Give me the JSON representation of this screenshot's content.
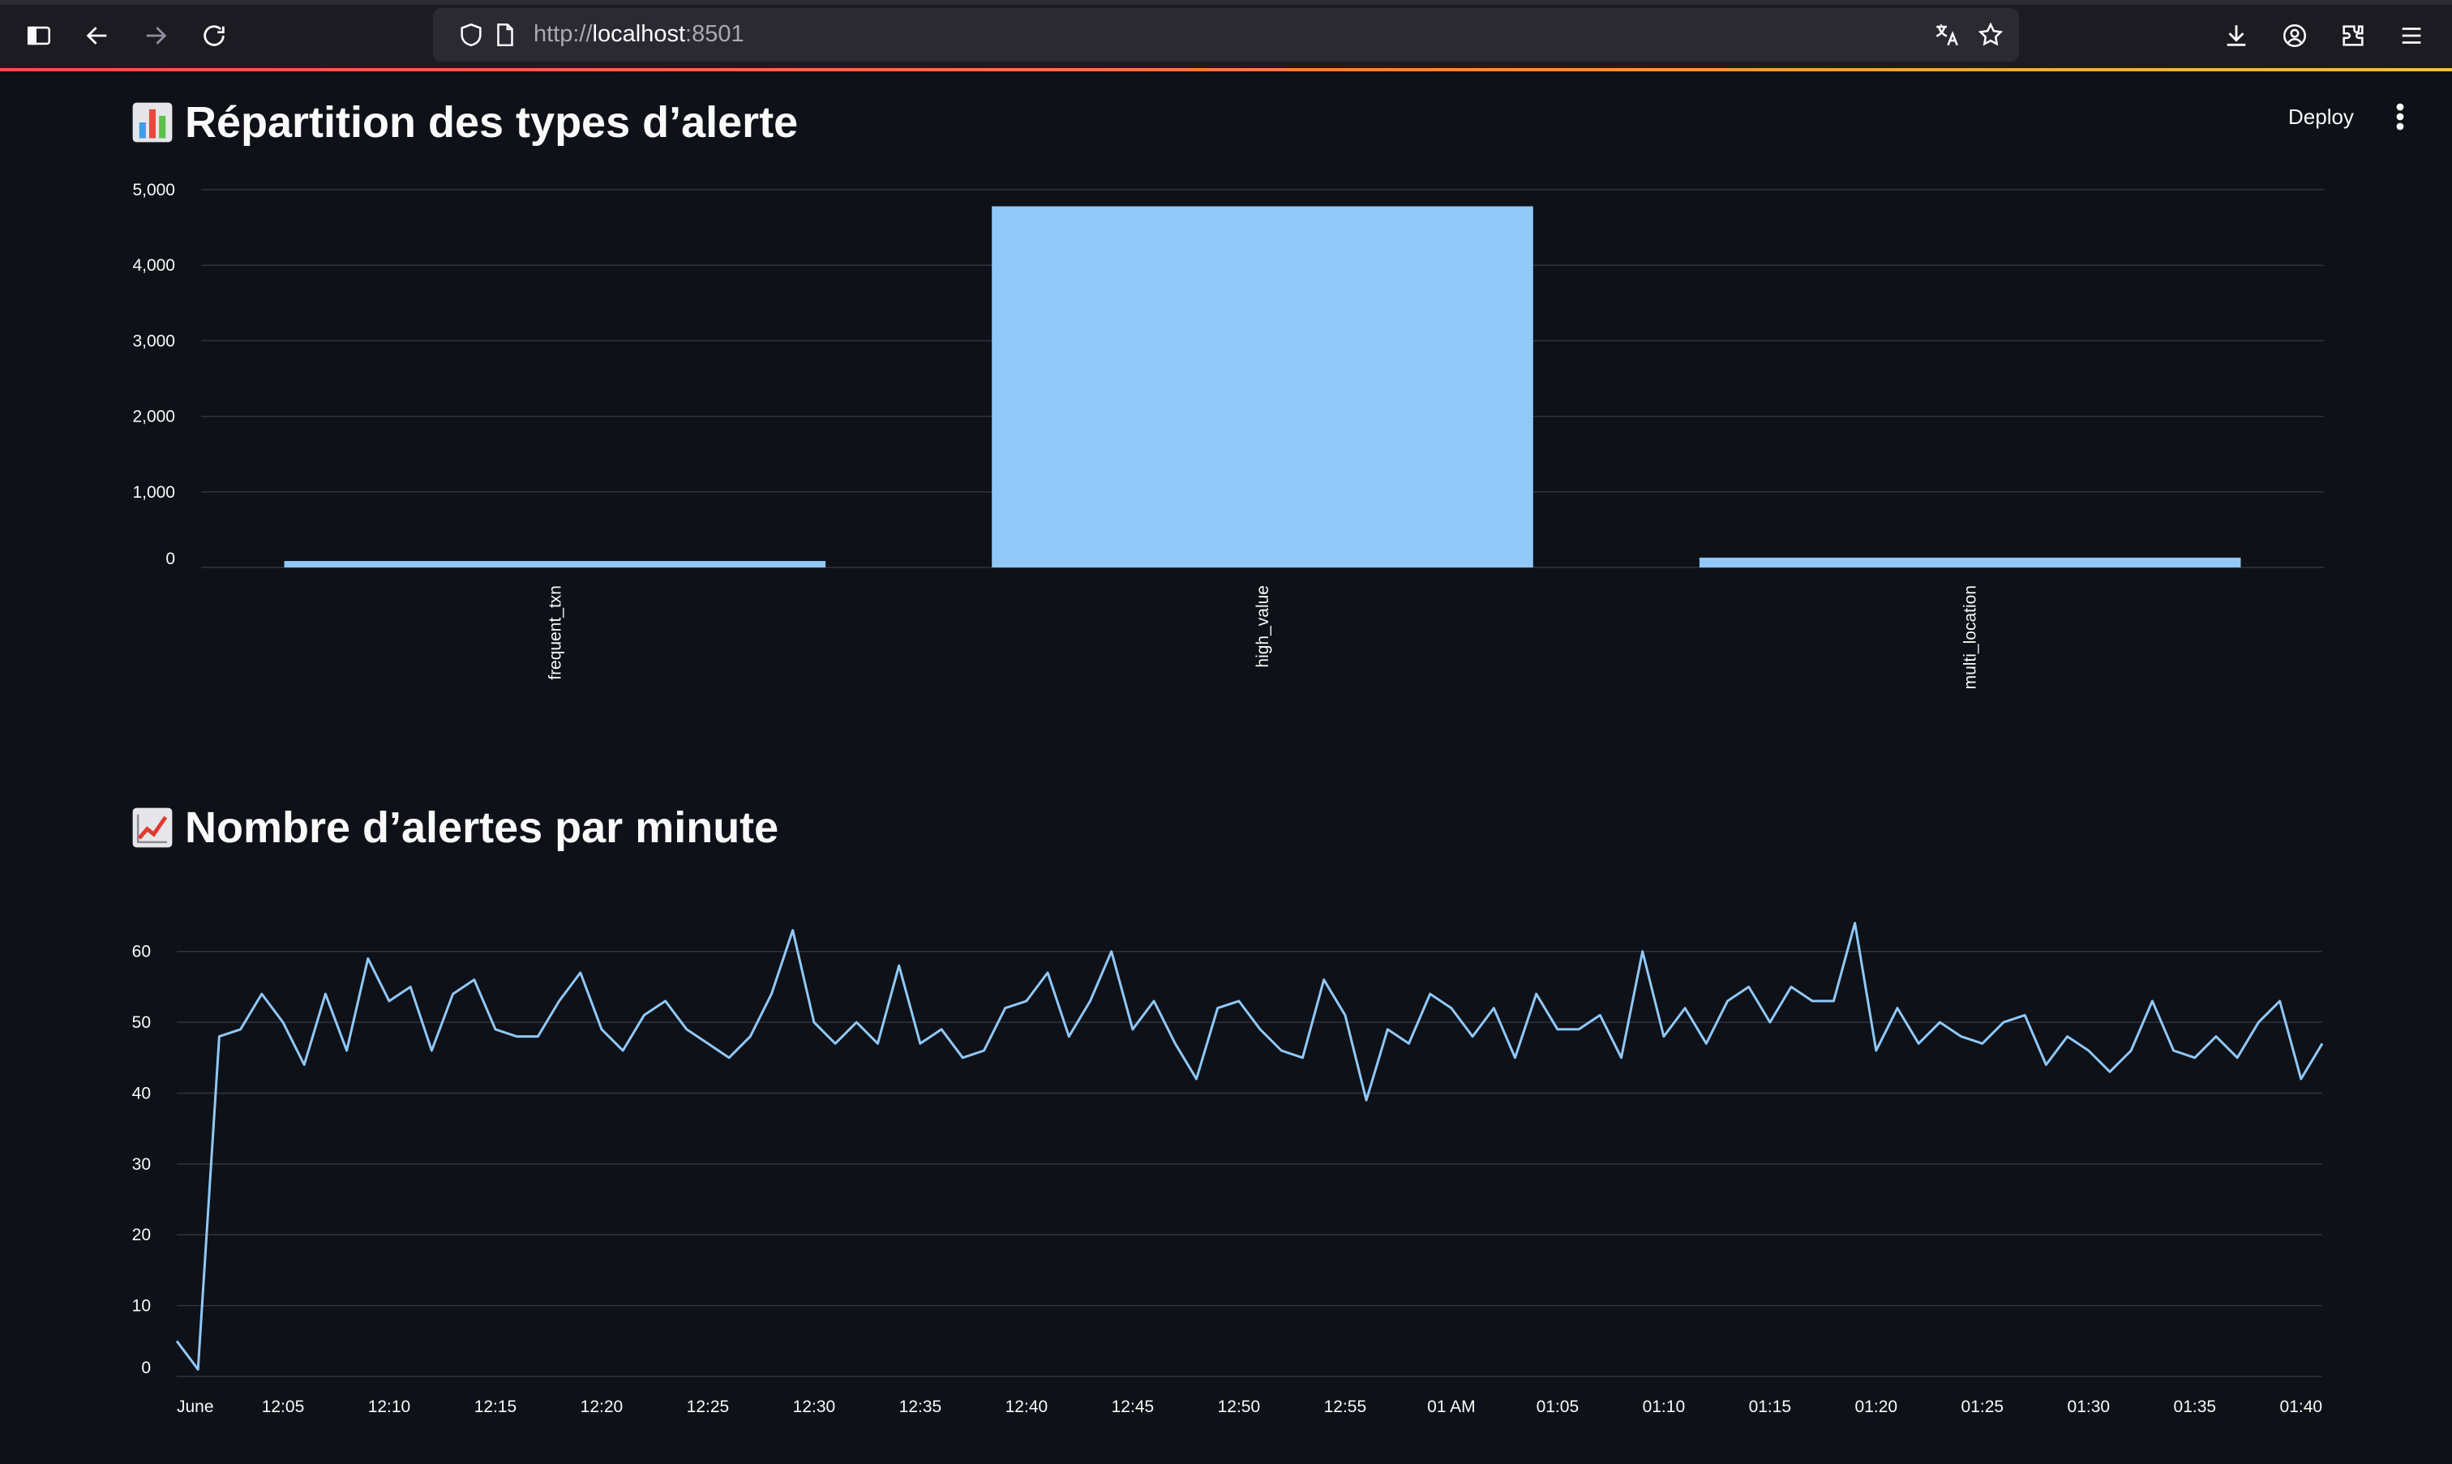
{
  "browser": {
    "url_scheme": "http://",
    "url_host": "localhost",
    "url_port": ":8501"
  },
  "app": {
    "deploy_label": "Deploy"
  },
  "sections": [
    {
      "emoji": "bar-chart-emoji",
      "title": "Répartition des types d’alerte"
    },
    {
      "emoji": "chart-increasing-emoji",
      "title": "Nombre d’alertes par minute"
    }
  ],
  "colors": {
    "background": "#0e1117",
    "series": "#90c8f8",
    "grid": "#31333f"
  },
  "chart_data": [
    {
      "type": "bar",
      "title": "",
      "categories": [
        "frequent_txn",
        "high_value",
        "multi_location"
      ],
      "values": [
        85,
        4780,
        130
      ],
      "ylim": [
        0,
        5000
      ],
      "yticks": [
        0,
        1000,
        2000,
        3000,
        4000,
        5000
      ],
      "ytick_labels": [
        "0",
        "1,000",
        "2,000",
        "3,000",
        "4,000",
        "5,000"
      ],
      "grid": true,
      "xlabel": "",
      "ylabel": ""
    },
    {
      "type": "line",
      "title": "",
      "x_start": "June 12:00",
      "x_step_minutes": 1,
      "values": [
        5,
        1,
        48,
        49,
        54,
        50,
        44,
        54,
        46,
        59,
        53,
        55,
        46,
        54,
        56,
        49,
        48,
        48,
        53,
        57,
        49,
        46,
        51,
        53,
        49,
        47,
        45,
        48,
        54,
        63,
        50,
        47,
        50,
        47,
        58,
        47,
        49,
        45,
        46,
        52,
        53,
        57,
        48,
        53,
        60,
        49,
        53,
        47,
        42,
        52,
        53,
        49,
        46,
        45,
        56,
        51,
        39,
        49,
        47,
        54,
        52,
        48,
        52,
        45,
        54,
        49,
        49,
        51,
        45,
        60,
        48,
        52,
        47,
        53,
        55,
        50,
        55,
        53,
        53,
        64,
        46,
        52,
        47,
        50,
        48,
        47,
        50,
        51,
        44,
        48,
        46,
        43,
        46,
        53,
        46,
        45,
        48,
        45,
        50,
        53,
        42,
        47
      ],
      "ylim": [
        0,
        65
      ],
      "yticks": [
        0,
        10,
        20,
        30,
        40,
        50,
        60
      ],
      "xtick_labels": [
        "June",
        "12:05",
        "12:10",
        "12:15",
        "12:20",
        "12:25",
        "12:30",
        "12:35",
        "12:40",
        "12:45",
        "12:50",
        "12:55",
        "01 AM",
        "01:05",
        "01:10",
        "01:15",
        "01:20",
        "01:25",
        "01:30",
        "01:35",
        "01:40"
      ],
      "grid": true,
      "xlabel": "",
      "ylabel": ""
    }
  ]
}
